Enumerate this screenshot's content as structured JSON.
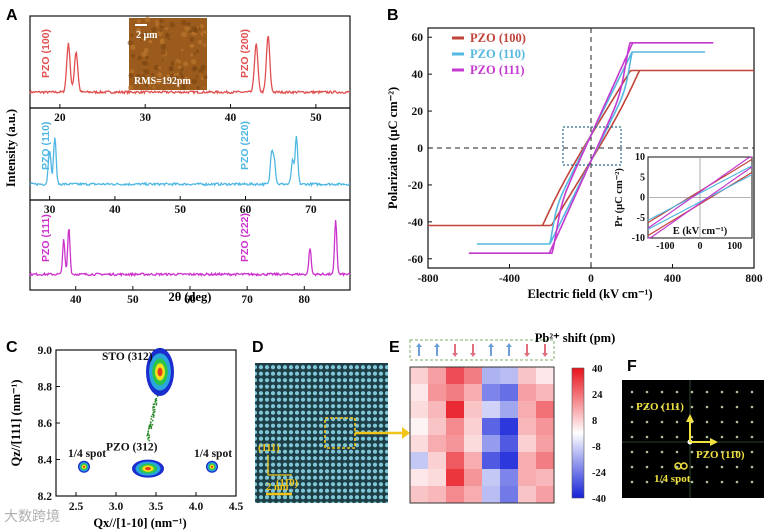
{
  "panels": {
    "A": "A",
    "B": "B",
    "C": "C",
    "D": "D",
    "E": "E",
    "F": "F"
  },
  "colors": {
    "red": "#e05050",
    "cyan": "#4fb7e3",
    "magenta": "#cc33cc",
    "pe_red": "#c0443a",
    "pe_cyan": "#55b8e0",
    "pe_mag": "#c43ad0"
  },
  "watermark": "大数跨境",
  "chart_data": [
    {
      "panel": "A",
      "type": "line",
      "ylabel": "Intensity (a.u.)",
      "xlabel": "2θ (deg)",
      "inset": {
        "scale": "2 μm",
        "rms": "RMS=192pm"
      },
      "subplots": [
        {
          "name": "PZO (100)",
          "x_ticks": [
            20,
            30,
            40,
            50
          ],
          "xlim": [
            16.5,
            54
          ],
          "peaks": [
            {
              "x": 21.0,
              "h": 0.62
            },
            {
              "x": 21.9,
              "h": 0.52
            },
            {
              "x": 43.0,
              "h": 0.62
            },
            {
              "x": 44.4,
              "h": 0.72
            }
          ],
          "labels": [
            "PZO (100)",
            "PZO (200)"
          ]
        },
        {
          "name": "PZO (110)",
          "x_ticks": [
            30,
            40,
            50,
            60,
            70
          ],
          "xlim": [
            27,
            76
          ],
          "peaks": [
            {
              "x": 30.0,
              "h": 0.45
            },
            {
              "x": 30.8,
              "h": 0.6
            },
            {
              "x": 64.0,
              "h": 0.4
            },
            {
              "x": 64.4,
              "h": 0.3
            },
            {
              "x": 67.2,
              "h": 0.3
            },
            {
              "x": 67.8,
              "h": 0.6
            }
          ],
          "labels": [
            "PZO (110)",
            "PZO (220)"
          ]
        },
        {
          "name": "PZO (111)",
          "x_ticks": [
            40,
            50,
            60,
            70,
            80
          ],
          "xlim": [
            32,
            88
          ],
          "peaks": [
            {
              "x": 37.9,
              "h": 0.45
            },
            {
              "x": 38.8,
              "h": 0.62
            },
            {
              "x": 81.0,
              "h": 0.35
            },
            {
              "x": 85.5,
              "h": 0.72
            }
          ],
          "labels": [
            "PZO (111)",
            "PZO (222)"
          ]
        }
      ]
    },
    {
      "panel": "B",
      "type": "line",
      "xlabel": "Electric field (kV cm⁻¹)",
      "ylabel": "Polarization (μC cm⁻²)",
      "xlim": [
        -800,
        800
      ],
      "ylim": [
        -65,
        65
      ],
      "x_ticks": [
        -800,
        -400,
        0,
        400,
        800
      ],
      "y_ticks": [
        -60,
        -40,
        -20,
        0,
        20,
        40,
        60
      ],
      "series": [
        {
          "name": "PZO (100)",
          "Emax": 800,
          "Pmax": 42,
          "Ec": [
            250,
            520
          ],
          "Pd": 7
        },
        {
          "name": "PZO (110)",
          "Emax": 560,
          "Pmax": 52,
          "Ec": [
            190,
            300
          ],
          "Pd": 7
        },
        {
          "name": "PZO (111)",
          "Emax": 600,
          "Pmax": 57,
          "Ec": [
            170,
            400
          ],
          "Pd": 7
        }
      ],
      "inset": {
        "ylabel": "Pr (μC cm⁻²)",
        "xlabel": "E (kV cm⁻¹)",
        "x_ticks": [
          -100,
          0,
          100
        ],
        "y_ticks": [
          -10,
          -5,
          0,
          5,
          10
        ],
        "xlim": [
          -150,
          150
        ],
        "ylim": [
          -10,
          10
        ]
      }
    },
    {
      "panel": "C",
      "type": "scatter",
      "xlabel": "Qx//[1-10] (nm⁻¹)",
      "ylabel": "Qz//[111] (nm⁻¹)",
      "xlim": [
        2.25,
        4.5
      ],
      "ylim": [
        8.2,
        9.0
      ],
      "x_ticks": [
        2.5,
        3.0,
        3.5,
        4.0,
        4.5
      ],
      "y_ticks": [
        8.2,
        8.4,
        8.6,
        8.8,
        9.0
      ],
      "spots": [
        {
          "label": "STO (312)",
          "x": 3.55,
          "y": 8.88
        },
        {
          "label": "PZO (312)",
          "x": 3.4,
          "y": 8.35
        },
        {
          "label": "1/4 spot",
          "x": 2.6,
          "y": 8.36
        },
        {
          "label": "1/4 spot",
          "x": 4.2,
          "y": 8.36
        }
      ]
    },
    {
      "panel": "D",
      "type": "other",
      "labels": {
        "v": "(111)",
        "h": "(11̄0)",
        "scale": "2 nm"
      }
    },
    {
      "panel": "E",
      "type": "heatmap",
      "colorbar_title": "Pb²⁺ shift (pm)",
      "colorbar_ticks": [
        40,
        24,
        8,
        -8,
        -24,
        -40
      ],
      "vmin": -40,
      "vmax": 40,
      "arrows": [
        "up",
        "up",
        "down",
        "down",
        "up",
        "up",
        "down",
        "down"
      ],
      "values": [
        [
          8,
          16,
          30,
          22,
          -14,
          -12,
          10,
          4
        ],
        [
          4,
          18,
          22,
          14,
          -22,
          -26,
          16,
          12
        ],
        [
          6,
          12,
          36,
          10,
          -8,
          -16,
          14,
          24
        ],
        [
          2,
          10,
          20,
          8,
          -28,
          -36,
          12,
          18
        ],
        [
          6,
          14,
          18,
          6,
          -18,
          -30,
          8,
          16
        ],
        [
          -10,
          8,
          28,
          14,
          -30,
          -36,
          14,
          22
        ],
        [
          4,
          6,
          34,
          18,
          -10,
          -22,
          14,
          12
        ],
        [
          10,
          12,
          20,
          14,
          -12,
          -24,
          10,
          16
        ]
      ]
    },
    {
      "panel": "F",
      "type": "other",
      "labels": {
        "v": "PZO (111)",
        "h": "PZO (11̄0)",
        "spot": "1/4 spot"
      }
    }
  ]
}
